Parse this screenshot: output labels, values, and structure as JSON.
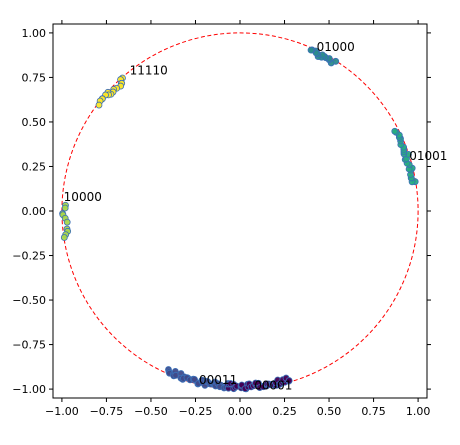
{
  "chart_data": {
    "type": "scatter",
    "xlim": [
      -1.05,
      1.05
    ],
    "ylim": [
      -1.05,
      1.05
    ],
    "xticks": [
      "−1.00",
      "−0.75",
      "−0.50",
      "−0.25",
      "0.00",
      "0.25",
      "0.50",
      "0.75",
      "1.00"
    ],
    "xtick_values": [
      -1.0,
      -0.75,
      -0.5,
      -0.25,
      0.0,
      0.25,
      0.5,
      0.75,
      1.0
    ],
    "yticks": [
      "1.00",
      "0.75",
      "0.50",
      "0.25",
      "0.00",
      "−0.25",
      "−0.50",
      "−0.75",
      "−1.00"
    ],
    "ytick_values": [
      1.0,
      0.75,
      0.5,
      0.25,
      0.0,
      -0.25,
      -0.5,
      -0.75,
      -1.0
    ],
    "grid": false,
    "reference_circle": {
      "radius": 1.0,
      "center": [
        0,
        0
      ],
      "color": "#ff0000",
      "style": "dashed"
    },
    "clusters": [
      {
        "label": "01000",
        "color": "#2b8c8c",
        "label_pos": [
          0.43,
          0.92
        ],
        "arc_deg": [
          58,
          66
        ],
        "points": 14
      },
      {
        "label": "01001",
        "color": "#27ad81",
        "label_pos": [
          0.95,
          0.31
        ],
        "arc_deg": [
          9,
          27
        ],
        "points": 24
      },
      {
        "label": "10000",
        "color": "#a8d64a",
        "label_pos": [
          -0.99,
          0.08
        ],
        "arc_deg": [
          178,
          189
        ],
        "points": 10
      },
      {
        "label": "11110",
        "color": "#fde725",
        "label_pos": [
          -0.62,
          0.79
        ],
        "arc_deg": [
          131,
          143
        ],
        "points": 16
      },
      {
        "label": "00011",
        "color": "#3f4a8a",
        "label_pos": [
          -0.23,
          -0.95
        ],
        "arc_deg": [
          246,
          266
        ],
        "points": 40
      },
      {
        "label": "00001",
        "color": "#440154",
        "label_pos": [
          0.08,
          -0.98
        ],
        "arc_deg": [
          266,
          286
        ],
        "points": 44
      }
    ]
  }
}
